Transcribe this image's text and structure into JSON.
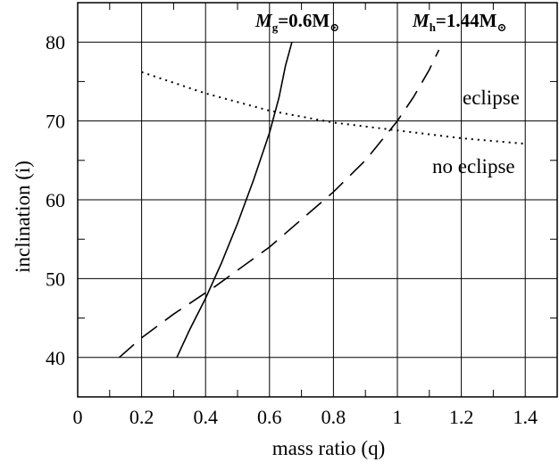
{
  "chart_data": {
    "type": "line",
    "xlabel": "mass ratio (q)",
    "ylabel": "inclination (i)",
    "xlim": [
      0,
      1.5
    ],
    "ylim": [
      35,
      85
    ],
    "x_ticks": [
      "0",
      "0.2",
      "0.4",
      "0.6",
      "0.8",
      "1",
      "1.2",
      "1.4"
    ],
    "y_ticks": [
      "40",
      "50",
      "60",
      "70",
      "80"
    ],
    "grid": true,
    "annotations": [
      {
        "prefix": "M",
        "sub": "g",
        "value": "=0.6M",
        "symbol": "⊙"
      },
      {
        "prefix": "M",
        "sub": "h",
        "value": "=1.44M",
        "symbol": "⊙"
      }
    ],
    "regions": {
      "upper": "eclipse",
      "lower": "no eclipse"
    },
    "series": [
      {
        "style": "solid",
        "x": [
          0.31,
          0.35,
          0.4,
          0.45,
          0.5,
          0.55,
          0.6,
          0.63,
          0.65,
          0.67
        ],
        "y": [
          40,
          43.5,
          47.5,
          52,
          57,
          62.5,
          68.5,
          73,
          77,
          80
        ]
      },
      {
        "style": "dashed",
        "x": [
          0.13,
          0.2,
          0.3,
          0.43,
          0.6,
          0.8,
          0.9,
          0.96,
          1.0,
          1.05,
          1.1,
          1.13
        ],
        "y": [
          40,
          42.5,
          45.5,
          49,
          54,
          61,
          65,
          68,
          70,
          73,
          76.5,
          79
        ]
      },
      {
        "style": "dotted",
        "x": [
          0.2,
          0.4,
          0.6,
          0.8,
          1.0,
          1.2,
          1.4
        ],
        "y": [
          76.2,
          73.5,
          71.3,
          69.8,
          68.8,
          67.8,
          67.1
        ]
      }
    ]
  }
}
